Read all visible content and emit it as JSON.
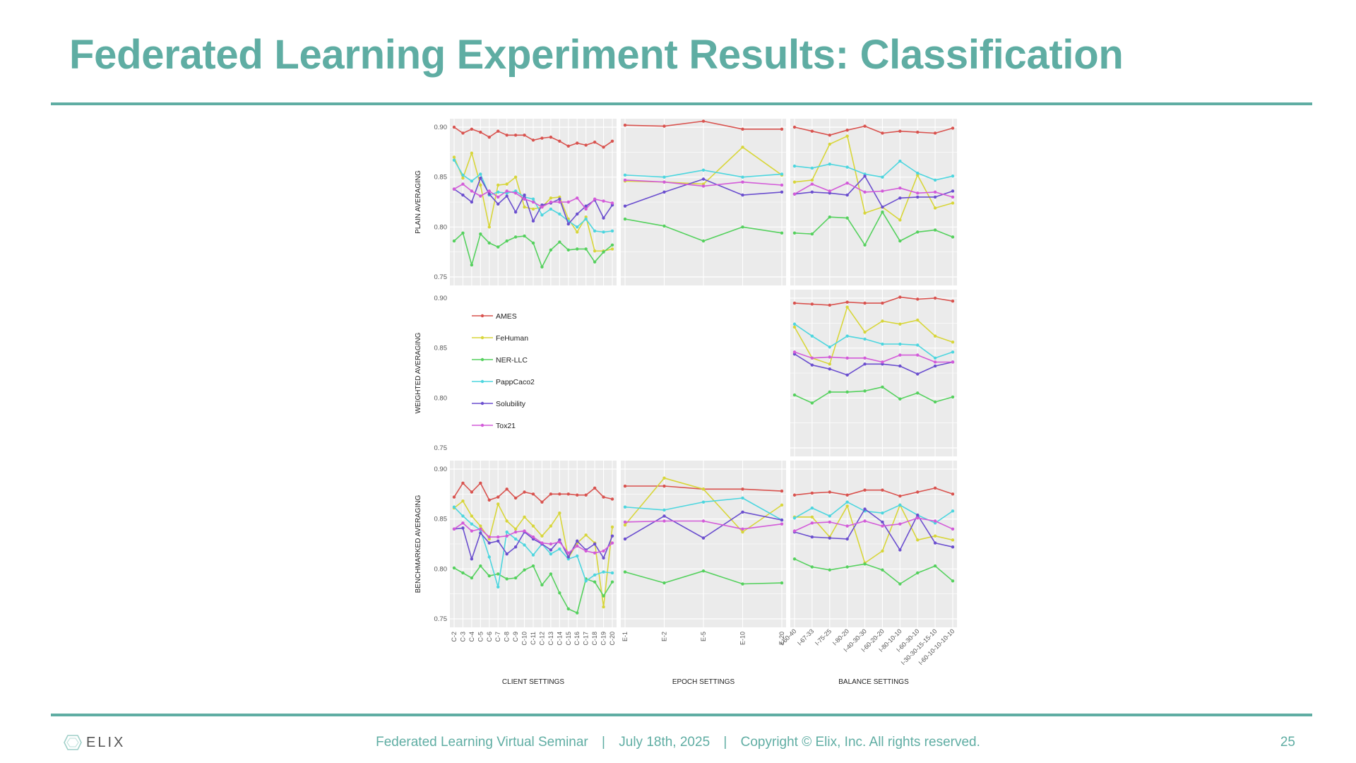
{
  "slide": {
    "title": "Federated Learning Experiment Results: Classification",
    "footer": {
      "event": "Federated Learning Virtual Seminar",
      "date": "July 18th, 2025",
      "copyright": "Copyright © Elix, Inc. All rights reserved.",
      "separator": "|",
      "page": "25",
      "logo_text": "ELIX"
    },
    "colors": {
      "accent": "#5fada3"
    }
  },
  "chart_data": {
    "type": "line",
    "ylim": [
      0.75,
      0.9
    ],
    "yticks": [
      "0.75",
      "0.80",
      "0.85",
      "0.90"
    ],
    "row_labels": [
      "PLAIN AVERAGING",
      "WEIGHTED AVERAGING",
      "BENCHMARKED AVERAGING"
    ],
    "col_labels": [
      "CLIENT SETTINGS",
      "EPOCH SETTINGS",
      "BALANCE SETTINGS"
    ],
    "categories": {
      "client": [
        "C-2",
        "C-3",
        "C-4",
        "C-5",
        "C-6",
        "C-7",
        "C-8",
        "C-9",
        "C-10",
        "C-11",
        "C-12",
        "C-13",
        "C-14",
        "C-15",
        "C-16",
        "C-17",
        "C-18",
        "C-19",
        "C-20"
      ],
      "epoch": [
        "E-1",
        "E-2",
        "E-5",
        "E-10",
        "E-20"
      ],
      "balance": [
        "I-60-40",
        "I-67-33",
        "I-75-25",
        "I-80-20",
        "I-40-30-30",
        "I-60-20-20",
        "I-80-10-10",
        "I-60-30-10",
        "I-30-30-15-15-10",
        "I-60-10-10-10-10"
      ]
    },
    "legend": [
      {
        "name": "AMES",
        "color": "#d9534f"
      },
      {
        "name": "FeHuman",
        "color": "#d8d63a"
      },
      {
        "name": "NER-LLC",
        "color": "#55d15e"
      },
      {
        "name": "PappCaco2",
        "color": "#4dd6df"
      },
      {
        "name": "Solubility",
        "color": "#6b4fcf"
      },
      {
        "name": "Tox21",
        "color": "#d35bd9"
      }
    ],
    "panels": [
      {
        "row": 0,
        "col": "client",
        "series": {
          "AMES": [
            0.9,
            0.894,
            0.898,
            0.895,
            0.89,
            0.896,
            0.892,
            0.892,
            0.892,
            0.887,
            0.889,
            0.89,
            0.886,
            0.881,
            0.884,
            0.882,
            0.885,
            0.88,
            0.886
          ],
          "FeHuman": [
            0.87,
            0.849,
            0.874,
            0.842,
            0.8,
            0.842,
            0.843,
            0.85,
            0.82,
            0.818,
            0.82,
            0.829,
            0.83,
            0.808,
            0.795,
            0.81,
            0.776,
            0.776,
            0.778
          ],
          "NER-LLC": [
            0.786,
            0.794,
            0.762,
            0.793,
            0.784,
            0.78,
            0.786,
            0.79,
            0.791,
            0.784,
            0.76,
            0.777,
            0.785,
            0.777,
            0.778,
            0.778,
            0.765,
            0.775,
            0.782
          ],
          "PappCaco2": [
            0.867,
            0.852,
            0.846,
            0.853,
            0.832,
            0.835,
            0.834,
            0.836,
            0.83,
            0.828,
            0.812,
            0.818,
            0.813,
            0.806,
            0.8,
            0.808,
            0.796,
            0.795,
            0.796
          ],
          "Solubility": [
            0.838,
            0.832,
            0.825,
            0.849,
            0.833,
            0.823,
            0.831,
            0.815,
            0.832,
            0.806,
            0.822,
            0.824,
            0.828,
            0.803,
            0.813,
            0.821,
            0.827,
            0.809,
            0.822
          ],
          "Tox21": [
            0.838,
            0.843,
            0.836,
            0.831,
            0.836,
            0.83,
            0.836,
            0.834,
            0.828,
            0.825,
            0.82,
            0.825,
            0.825,
            0.825,
            0.829,
            0.818,
            0.828,
            0.826,
            0.824
          ]
        }
      },
      {
        "row": 0,
        "col": "epoch",
        "series": {
          "AMES": [
            0.902,
            0.901,
            0.906,
            0.898,
            0.898
          ],
          "FeHuman": [
            0.846,
            0.845,
            0.843,
            0.88,
            0.852
          ],
          "NER-LLC": [
            0.808,
            0.801,
            0.786,
            0.8,
            0.794
          ],
          "PappCaco2": [
            0.852,
            0.85,
            0.857,
            0.85,
            0.853
          ],
          "Solubility": [
            0.821,
            0.835,
            0.848,
            0.832,
            0.835
          ],
          "Tox21": [
            0.847,
            0.845,
            0.841,
            0.845,
            0.842
          ]
        }
      },
      {
        "row": 0,
        "col": "balance",
        "series": {
          "AMES": [
            0.9,
            0.896,
            0.892,
            0.897,
            0.901,
            0.894,
            0.896,
            0.895,
            0.894,
            0.899
          ],
          "FeHuman": [
            0.845,
            0.847,
            0.883,
            0.891,
            0.814,
            0.82,
            0.807,
            0.852,
            0.819,
            0.824
          ],
          "NER-LLC": [
            0.794,
            0.793,
            0.81,
            0.809,
            0.782,
            0.815,
            0.786,
            0.795,
            0.797,
            0.79
          ],
          "PappCaco2": [
            0.861,
            0.859,
            0.863,
            0.86,
            0.853,
            0.85,
            0.866,
            0.854,
            0.847,
            0.851
          ],
          "Solubility": [
            0.833,
            0.835,
            0.834,
            0.832,
            0.851,
            0.82,
            0.829,
            0.83,
            0.83,
            0.836
          ],
          "Tox21": [
            0.833,
            0.843,
            0.836,
            0.844,
            0.835,
            0.836,
            0.839,
            0.834,
            0.835,
            0.83
          ]
        }
      },
      {
        "row": 1,
        "col": "balance",
        "series": {
          "AMES": [
            0.895,
            0.894,
            0.893,
            0.896,
            0.895,
            0.895,
            0.901,
            0.899,
            0.9,
            0.897
          ],
          "FeHuman": [
            0.871,
            0.84,
            0.834,
            0.891,
            0.866,
            0.877,
            0.874,
            0.878,
            0.862,
            0.856
          ],
          "NER-LLC": [
            0.803,
            0.795,
            0.806,
            0.806,
            0.807,
            0.811,
            0.799,
            0.805,
            0.796,
            0.801
          ],
          "PappCaco2": [
            0.874,
            0.862,
            0.851,
            0.862,
            0.859,
            0.854,
            0.854,
            0.853,
            0.84,
            0.846
          ],
          "Solubility": [
            0.844,
            0.833,
            0.829,
            0.823,
            0.834,
            0.834,
            0.832,
            0.824,
            0.832,
            0.836
          ],
          "Tox21": [
            0.846,
            0.84,
            0.841,
            0.84,
            0.84,
            0.836,
            0.843,
            0.843,
            0.836,
            0.836
          ]
        }
      },
      {
        "row": 2,
        "col": "client",
        "series": {
          "AMES": [
            0.872,
            0.886,
            0.877,
            0.886,
            0.869,
            0.872,
            0.88,
            0.871,
            0.877,
            0.875,
            0.867,
            0.875,
            0.875,
            0.875,
            0.874,
            0.874,
            0.881,
            0.872,
            0.87
          ],
          "FeHuman": [
            0.861,
            0.868,
            0.853,
            0.843,
            0.83,
            0.865,
            0.848,
            0.84,
            0.852,
            0.843,
            0.833,
            0.843,
            0.856,
            0.811,
            0.826,
            0.834,
            0.826,
            0.762,
            0.842
          ],
          "NER-LLC": [
            0.801,
            0.796,
            0.791,
            0.803,
            0.793,
            0.795,
            0.79,
            0.791,
            0.799,
            0.803,
            0.784,
            0.795,
            0.776,
            0.76,
            0.756,
            0.79,
            0.787,
            0.773,
            0.787
          ],
          "PappCaco2": [
            0.862,
            0.853,
            0.845,
            0.839,
            0.812,
            0.782,
            0.837,
            0.83,
            0.824,
            0.814,
            0.825,
            0.815,
            0.82,
            0.81,
            0.813,
            0.788,
            0.794,
            0.797,
            0.796
          ],
          "Solubility": [
            0.84,
            0.841,
            0.81,
            0.836,
            0.826,
            0.828,
            0.815,
            0.822,
            0.837,
            0.83,
            0.825,
            0.819,
            0.829,
            0.812,
            0.828,
            0.819,
            0.825,
            0.811,
            0.833
          ],
          "Tox21": [
            0.84,
            0.846,
            0.838,
            0.84,
            0.832,
            0.832,
            0.833,
            0.837,
            0.838,
            0.832,
            0.826,
            0.825,
            0.827,
            0.816,
            0.823,
            0.818,
            0.816,
            0.818,
            0.826
          ]
        }
      },
      {
        "row": 2,
        "col": "epoch",
        "series": {
          "AMES": [
            0.883,
            0.883,
            0.88,
            0.88,
            0.878
          ],
          "FeHuman": [
            0.844,
            0.891,
            0.88,
            0.837,
            0.864
          ],
          "NER-LLC": [
            0.797,
            0.786,
            0.798,
            0.785,
            0.786
          ],
          "PappCaco2": [
            0.862,
            0.859,
            0.867,
            0.871,
            0.849
          ],
          "Solubility": [
            0.83,
            0.853,
            0.831,
            0.857,
            0.849
          ],
          "Tox21": [
            0.847,
            0.848,
            0.848,
            0.84,
            0.845
          ]
        }
      },
      {
        "row": 2,
        "col": "balance",
        "series": {
          "AMES": [
            0.874,
            0.876,
            0.877,
            0.874,
            0.879,
            0.879,
            0.873,
            0.877,
            0.881,
            0.875
          ],
          "FeHuman": [
            0.852,
            0.852,
            0.832,
            0.863,
            0.806,
            0.818,
            0.864,
            0.829,
            0.833,
            0.829
          ],
          "NER-LLC": [
            0.81,
            0.802,
            0.799,
            0.802,
            0.805,
            0.799,
            0.785,
            0.796,
            0.803,
            0.788
          ],
          "PappCaco2": [
            0.851,
            0.861,
            0.853,
            0.867,
            0.858,
            0.856,
            0.864,
            0.854,
            0.846,
            0.858
          ],
          "Solubility": [
            0.837,
            0.832,
            0.831,
            0.83,
            0.86,
            0.847,
            0.819,
            0.854,
            0.826,
            0.822
          ],
          "Tox21": [
            0.838,
            0.846,
            0.847,
            0.843,
            0.848,
            0.843,
            0.845,
            0.851,
            0.848,
            0.84
          ]
        }
      }
    ]
  }
}
